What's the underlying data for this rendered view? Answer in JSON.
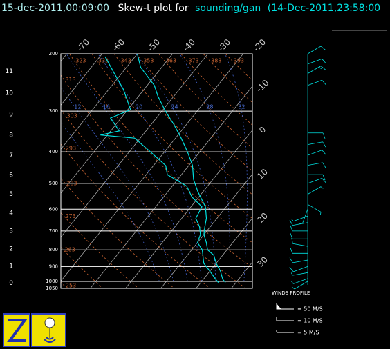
{
  "chart_data": {
    "type": "skewt",
    "header": {
      "time": "15-dec-2011,00:09:00",
      "title": "Skew-t plot for",
      "source": "sounding/gan",
      "obs_time": "(14-Dec-2011,23:58:00"
    },
    "ylim": [
      200,
      1050
    ],
    "pressure_ticks": [
      200,
      300,
      400,
      500,
      600,
      700,
      800,
      900,
      1000,
      1050
    ],
    "height_ticks": [
      0,
      1,
      2,
      3,
      4,
      5,
      6,
      7,
      8,
      9,
      10,
      11
    ],
    "temperature_ticks": [
      -70,
      -60,
      -50,
      -40,
      -30,
      -20,
      -10,
      0,
      10,
      20,
      30
    ],
    "dry_adiabats": [
      253,
      263,
      273,
      283,
      293,
      303,
      313,
      323,
      333,
      343,
      353,
      363,
      373,
      383,
      393
    ],
    "moist_adiabats": [
      8,
      12,
      16,
      20,
      24,
      28,
      32
    ],
    "temperature": {
      "color": "#00e0e0",
      "pressure": [
        200,
        220,
        250,
        270,
        300,
        330,
        363,
        400,
        440,
        486,
        530,
        590,
        640,
        680,
        718,
        760,
        800,
        831,
        880,
        930,
        985,
        1008
      ],
      "values": [
        -50,
        -46,
        -38,
        -34.5,
        -29,
        -23.5,
        -18.4,
        -13.5,
        -9,
        -5.5,
        -1.5,
        4.1,
        7,
        8.5,
        10,
        12.5,
        14.5,
        17.5,
        20,
        23,
        25.5,
        27
      ]
    },
    "dewpoint": {
      "color": "#00e0e0",
      "pressure": [
        204,
        230,
        257,
        297,
        315,
        345,
        355,
        363,
        400,
        441,
        470,
        510,
        550,
        590,
        640,
        680,
        718,
        760,
        800,
        880,
        930,
        985,
        1008
      ],
      "values": [
        -58.5,
        -52,
        -45.9,
        -39.2,
        -43,
        -37.6,
        -42,
        -31.6,
        -24,
        -16.5,
        -14,
        -5.9,
        -2,
        3.1,
        4,
        7,
        9,
        10,
        13,
        16.5,
        20,
        23.5,
        25
      ]
    },
    "winds": {
      "color": "#00e0e0",
      "pressure": [
        200,
        215,
        230,
        250,
        350,
        380,
        410,
        440,
        470,
        500,
        540,
        580,
        600,
        630,
        660,
        700,
        740,
        780,
        820,
        860,
        900,
        940,
        980,
        1000
      ],
      "direction": [
        60,
        70,
        60,
        70,
        90,
        80,
        70,
        80,
        90,
        70,
        60,
        120,
        200,
        250,
        260,
        270,
        270,
        280,
        270,
        260,
        250,
        260,
        250,
        240
      ],
      "speed": [
        10,
        10,
        15,
        10,
        10,
        10,
        10,
        10,
        10,
        10,
        5,
        5,
        5,
        5,
        10,
        10,
        10,
        10,
        10,
        10,
        10,
        5,
        5,
        5
      ]
    },
    "wind_legend": {
      "title": "WINDS PROFILE",
      "items": [
        "= 50 M/S",
        "= 10 M/S",
        "= 5 M/S"
      ]
    }
  }
}
